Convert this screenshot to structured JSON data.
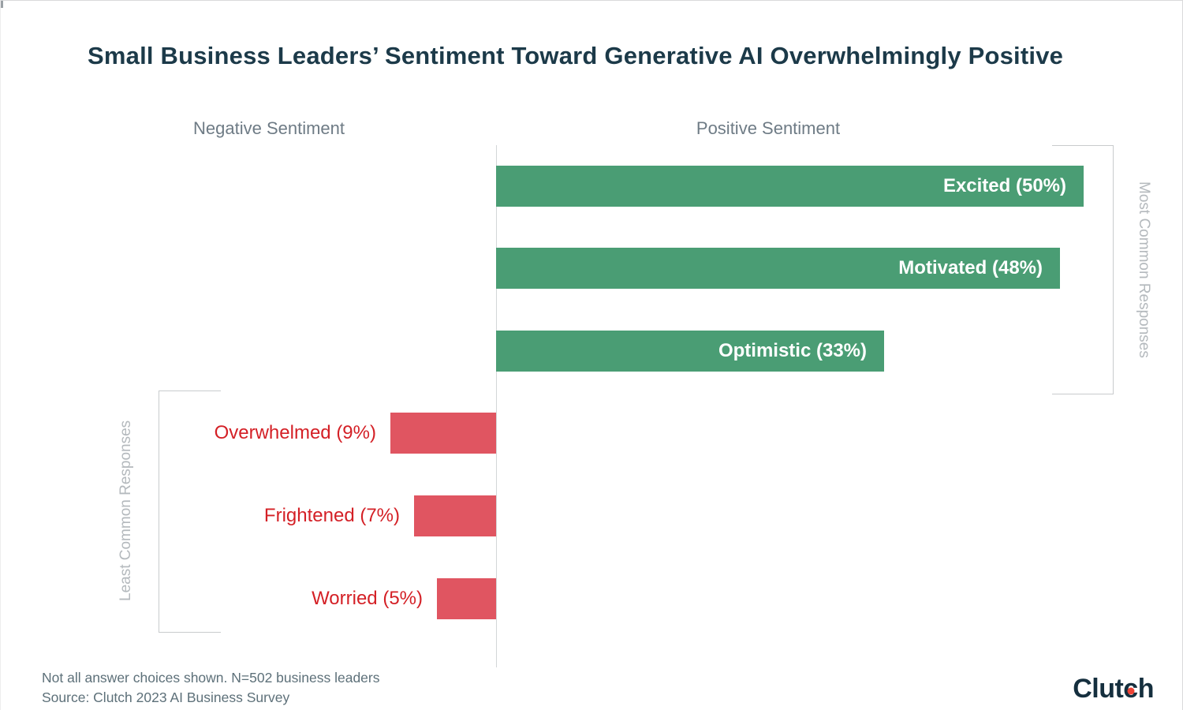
{
  "page": {
    "title": "Small Business Leaders’ Sentiment Toward Generative AI Overwhelmingly Positive"
  },
  "headers": {
    "negative": "Negative Sentiment",
    "positive": "Positive Sentiment"
  },
  "side_labels": {
    "most_common": "Most Common Responses",
    "least_common": "Least Common Responses"
  },
  "chart_data": {
    "type": "bar",
    "orientation": "horizontal",
    "diverging": true,
    "unit": "%",
    "title": "Small Business Leaders’ Sentiment Toward Generative AI Overwhelmingly Positive",
    "legend_position": "none",
    "grid": false,
    "series": [
      {
        "name": "Positive Sentiment",
        "direction": "right",
        "color": "#4a9d74",
        "label_color": "#ffffff",
        "annotation": "Most Common Responses",
        "categories": [
          "Excited",
          "Motivated",
          "Optimistic"
        ],
        "values": [
          50,
          48,
          33
        ]
      },
      {
        "name": "Negative Sentiment",
        "direction": "left",
        "color": "#e05561",
        "label_color": "#d42026",
        "annotation": "Least Common Responses",
        "categories": [
          "Overwhelmed",
          "Frightened",
          "Worried"
        ],
        "values": [
          9,
          7,
          5
        ]
      }
    ]
  },
  "footer": {
    "note": "Not all answer choices shown. N=502 business leaders",
    "source": "Source: Clutch 2023 AI Business Survey"
  },
  "logo": {
    "name": "Clutch",
    "part1": "Clut",
    "c": "c",
    "part2": "h"
  }
}
